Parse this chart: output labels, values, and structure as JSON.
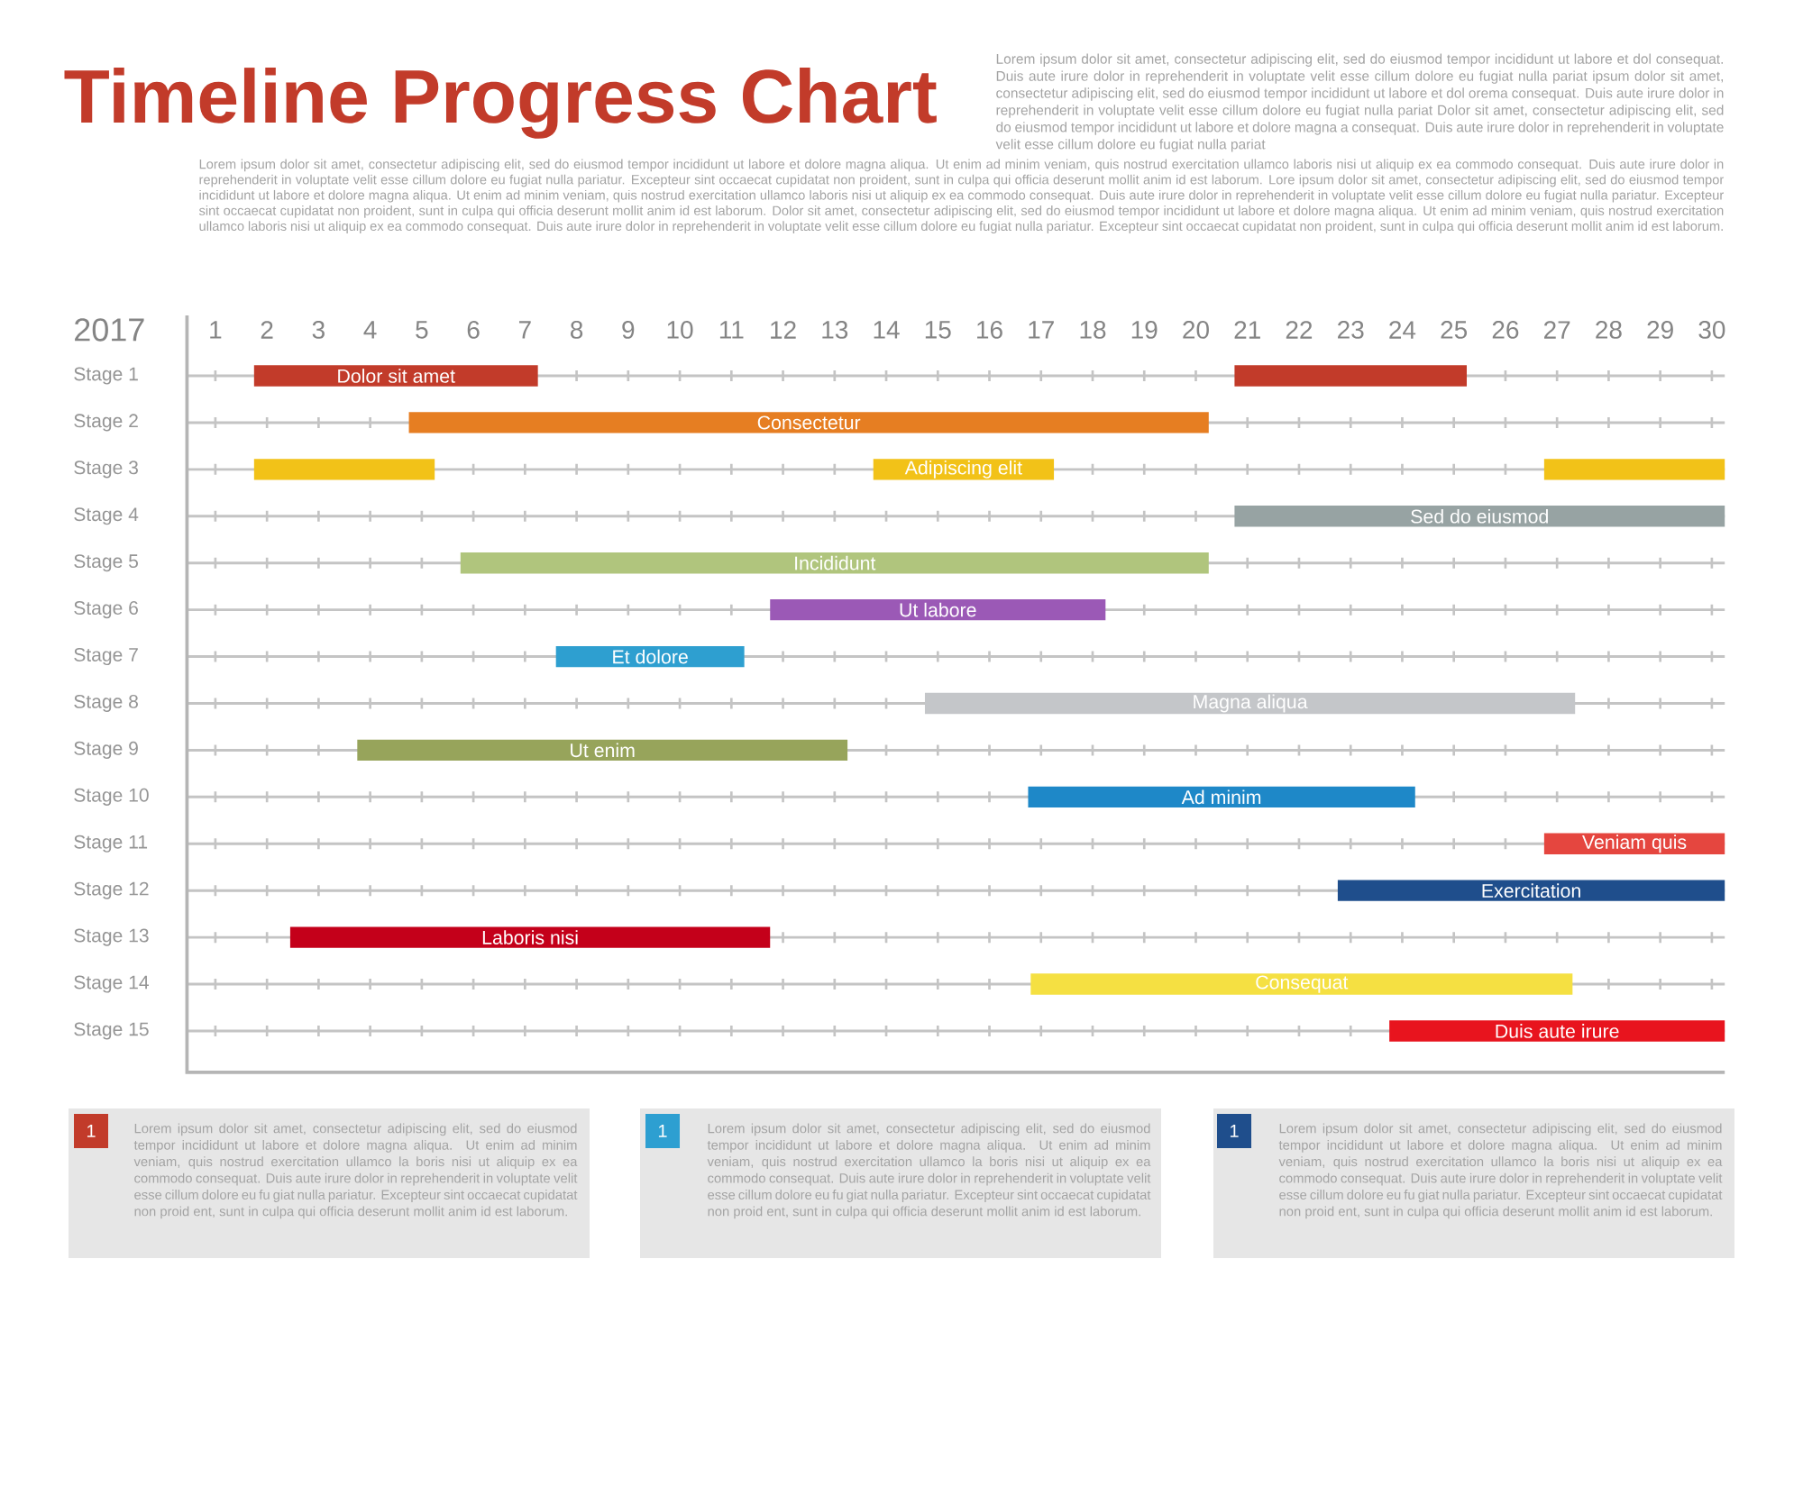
{
  "chart_data": {
    "type": "bar",
    "orientation": "horizontal",
    "title": "Timeline Progress Chart",
    "xlabel": "2017",
    "categories": [
      "Stage 1",
      "Stage 2",
      "Stage 3",
      "Stage 4",
      "Stage 5",
      "Stage 6",
      "Stage 7",
      "Stage 8",
      "Stage 9",
      "Stage 10",
      "Stage 11",
      "Stage 12",
      "Stage 13",
      "Stage 14",
      "Stage 15"
    ],
    "series": [
      {
        "base": [
          1.75,
          4.75,
          1.75,
          20.75,
          5.75,
          11.75,
          7.6,
          14.75,
          3.75,
          16.75,
          26.75,
          22.75,
          2.45,
          16.8,
          23.75
        ],
        "values": [
          5.5,
          15.5,
          3.5,
          9.5,
          14.5,
          6.5,
          3.65,
          12.6,
          9.5,
          7.5,
          3.5,
          7.5,
          9.3,
          10.5,
          6.5
        ],
        "colors": [
          "#c23b2a",
          "#e67e22",
          "#f2c218",
          "#97a3a3",
          "#b0c57d",
          "#9b59b6",
          "#2e9fd0",
          "#c4c6c9",
          "#97a45b",
          "#1e88c8",
          "#e5463f",
          "#1f4e8c",
          "#c4001a",
          "#f5e042",
          "#e8141e"
        ],
        "value_labels": [
          "Dolor sit amet",
          "Consectetur",
          null,
          "Sed do eiusmod",
          "Incididunt",
          "Ut labore",
          "Et dolore",
          "Magna aliqua",
          "Ut enim",
          "Ad minim",
          "Veniam quis",
          "Exercitation",
          "Laboris nisi",
          "Consequat",
          "Duis aute irure"
        ]
      },
      {
        "base": [
          20.75,
          null,
          13.75,
          null,
          null,
          null,
          null,
          null,
          null,
          null,
          null,
          null,
          null,
          null,
          null
        ],
        "values": [
          4.5,
          null,
          3.5,
          null,
          null,
          null,
          null,
          null,
          null,
          null,
          null,
          null,
          null,
          null,
          null
        ],
        "colors": [
          "#c23b2a",
          null,
          "#f2c218",
          null,
          null,
          null,
          null,
          null,
          null,
          null,
          null,
          null,
          null,
          null,
          null
        ],
        "value_labels": [
          null,
          null,
          "Adipiscing elit",
          null,
          null,
          null,
          null,
          null,
          null,
          null,
          null,
          null,
          null,
          null,
          null
        ]
      },
      {
        "base": [
          null,
          null,
          26.75,
          null,
          null,
          null,
          null,
          null,
          null,
          null,
          null,
          null,
          null,
          null,
          null
        ],
        "values": [
          null,
          null,
          3.5,
          null,
          null,
          null,
          null,
          null,
          null,
          null,
          null,
          null,
          null,
          null,
          null
        ],
        "colors": [
          null,
          null,
          "#f2c218",
          null,
          null,
          null,
          null,
          null,
          null,
          null,
          null,
          null,
          null,
          null,
          null
        ]
      }
    ],
    "xlim": [
      0.45,
      30.25
    ],
    "xticks": [
      1,
      2,
      3,
      4,
      5,
      6,
      7,
      8,
      9,
      10,
      11,
      12,
      13,
      14,
      15,
      16,
      17,
      18,
      19,
      20,
      21,
      22,
      23,
      24,
      25,
      26,
      27,
      28,
      29,
      30
    ],
    "grid": true,
    "annotations": [
      "Lorem ipsum dolor sit amet, consectetur adipiscing elit, sed do eiusmod tempor incididunt ut labore et dol consequat. Duis aute irure dolor in reprehenderit in voluptate velit esse cillum dolore eu fugiat nulla pariat ipsum dolor sit amet, consectetur adipiscing elit, sed do eiusmod tempor incididunt ut labore et dol orema consequat. Duis aute irure dolor in reprehenderit in voluptate velit esse cillum dolore eu fugiat nulla pariat Dolor sit amet, consectetur adipiscing elit, sed do eiusmod tempor incididunt ut labore et dolore magna a consequat. Duis aute irure dolor in reprehenderit in voluptate velit esse cillum dolore eu fugiat nulla pariat",
      "Lorem ipsum dolor sit amet, consectetur adipiscing elit, sed do eiusmod tempor incididunt ut labore et dolore magna aliqua. Ut enim ad minim veniam, quis nostrud exercitation ullamco laboris nisi ut aliquip ex ea commodo consequat. Duis aute irure dolor in reprehenderit in voluptate velit esse cillum dolore eu fugiat nulla pariatur. Excepteur sint occaecat cupidatat non proident, sunt in culpa qui officia deserunt mollit anim id est laborum. Lore ipsum dolor sit amet, consectetur adipiscing elit, sed do eiusmod tempor incididunt ut labore et dolore magna aliqua. Ut enim ad minim veniam, quis nostrud exercitation ullamco laboris nisi ut aliquip ex ea commodo consequat. Duis aute irure dolor in reprehenderit in voluptate velit esse cillum dolore eu fugiat nulla pariatur. Excepteur sint occaecat cupidatat non proident, sunt in culpa qui officia deserunt mollit anim id est laborum. Dolor sit amet, consectetur adipiscing elit, sed do eiusmod tempor incididunt ut labore et dolore magna aliqua. Ut enim ad minim veniam, quis nostrud exercitation ullamco laboris nisi ut aliquip ex ea commodo consequat. Duis aute irure dolor in reprehenderit in voluptate velit esse cillum dolore eu fugiat nulla pariatur. Excepteur sint occaecat cupidatat non proident, sunt in culpa qui officia deserunt mollit anim id est laborum.",
      "1",
      "Lorem ipsum dolor sit amet, consectetur adipiscing elit, sed do eiusmod tempor incididunt ut labore et dolore magna aliqua. Ut enim ad minim veniam, quis nostrud exercitation ullamco la boris nisi ut aliquip ex ea commodo consequat. Duis aute irure dolor in reprehenderit in voluptate velit esse cillum dolore eu fu giat nulla pariatur. Excepteur sint occaecat cupidatat non proid ent, sunt in culpa qui officia deserunt mollit anim id est laborum.",
      "1",
      "Lorem ipsum dolor sit amet, consectetur adipiscing elit, sed do eiusmod tempor incididunt ut labore et dolore magna aliqua. Ut enim ad minim veniam, quis nostrud exercitation ullamco la boris nisi ut aliquip ex ea commodo consequat. Duis aute irure dolor in reprehenderit in voluptate velit esse cillum dolore eu fu giat nulla pariatur. Excepteur sint occaecat cupidatat non proid ent, sunt in culpa qui officia deserunt mollit anim id est laborum.",
      "1",
      "Lorem ipsum dolor sit amet, consectetur adipiscing elit, sed do eiusmod tempor incididunt ut labore et dolore magna aliqua. Ut enim ad minim veniam, quis nostrud exercitation ullamco la boris nisi ut aliquip ex ea commodo consequat. Duis aute irure dolor in reprehenderit in voluptate velit esse cillum dolore eu fu giat nulla pariatur. Excepteur sint occaecat cupidatat non proid ent, sunt in culpa qui officia deserunt mollit anim id est laborum."
    ]
  }
}
